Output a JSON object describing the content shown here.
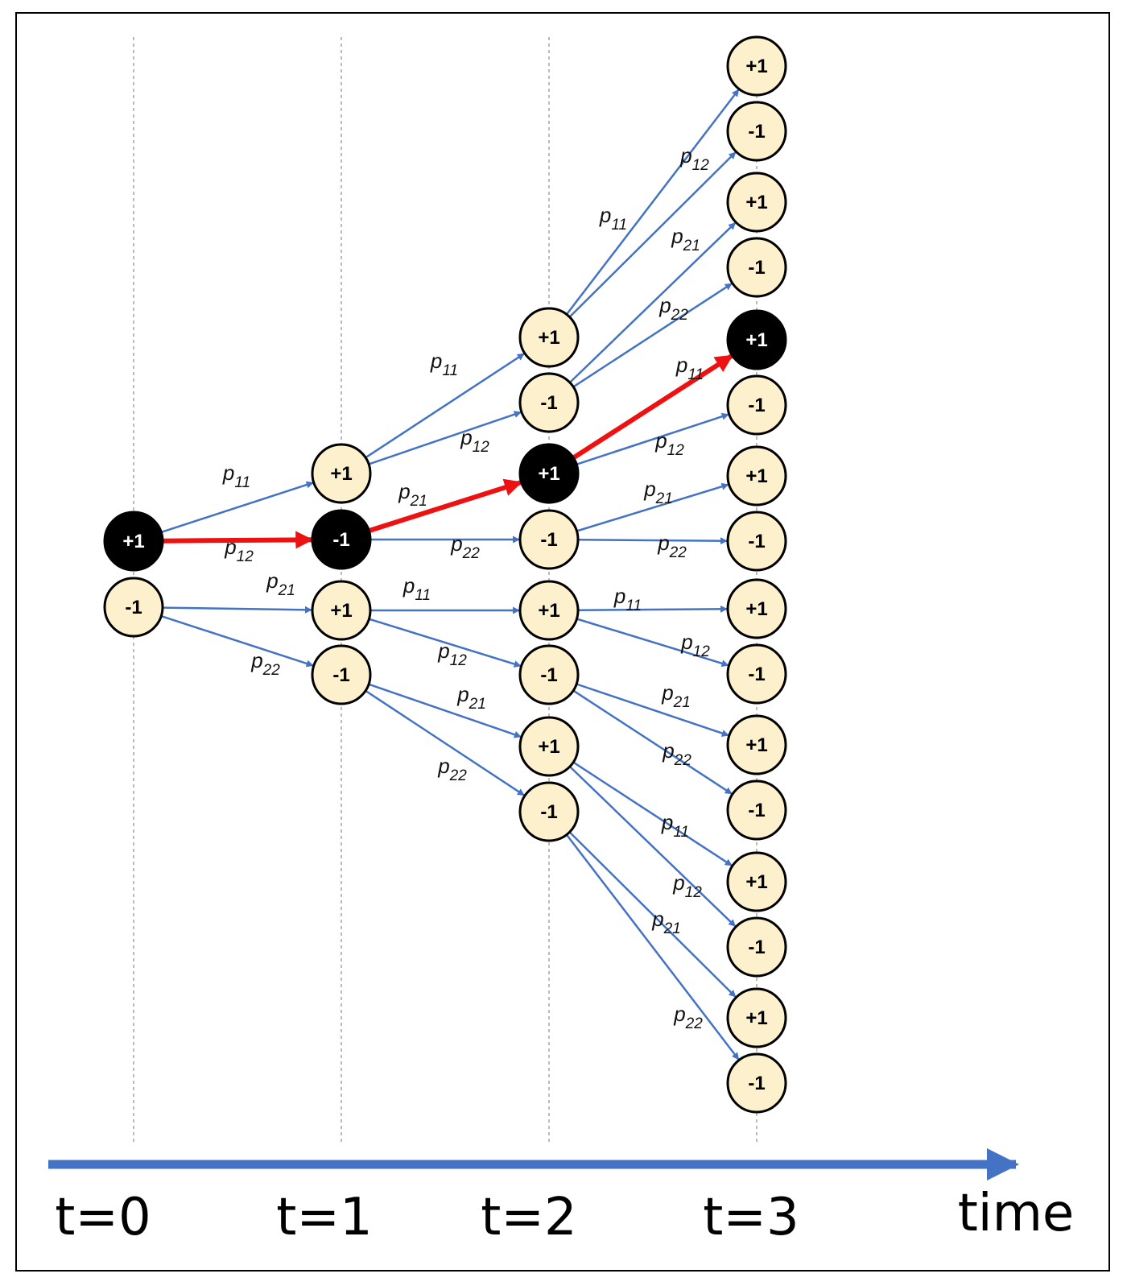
{
  "colors": {
    "frame": "#000000",
    "guide": "#777777",
    "edge": "#4472c4",
    "highlight": "#ee1111",
    "node_fill": "#fdf0cc",
    "node_dark_fill": "#000000",
    "node_stroke": "#000000",
    "node_text": "#000000",
    "node_dark_text": "#ffffff",
    "axis": "#4472c4"
  },
  "time_axis": {
    "ticks": [
      "t=0",
      "t=1",
      "t=2",
      "t=3"
    ],
    "label": "time"
  },
  "nodes": [
    {
      "id": "t0_a",
      "step": 0,
      "text": "+1",
      "highlighted": true
    },
    {
      "id": "t0_b",
      "step": 0,
      "text": "-1",
      "highlighted": false
    },
    {
      "id": "t1_a",
      "step": 1,
      "text": "+1",
      "highlighted": false
    },
    {
      "id": "t1_b",
      "step": 1,
      "text": "-1",
      "highlighted": true
    },
    {
      "id": "t1_c",
      "step": 1,
      "text": "+1",
      "highlighted": false
    },
    {
      "id": "t1_d",
      "step": 1,
      "text": "-1",
      "highlighted": false
    },
    {
      "id": "t2_a",
      "step": 2,
      "text": "+1",
      "highlighted": false
    },
    {
      "id": "t2_b",
      "step": 2,
      "text": "-1",
      "highlighted": false
    },
    {
      "id": "t2_c",
      "step": 2,
      "text": "+1",
      "highlighted": true
    },
    {
      "id": "t2_d",
      "step": 2,
      "text": "-1",
      "highlighted": false
    },
    {
      "id": "t2_e",
      "step": 2,
      "text": "+1",
      "highlighted": false
    },
    {
      "id": "t2_f",
      "step": 2,
      "text": "-1",
      "highlighted": false
    },
    {
      "id": "t2_g",
      "step": 2,
      "text": "+1",
      "highlighted": false
    },
    {
      "id": "t2_h",
      "step": 2,
      "text": "-1",
      "highlighted": false
    },
    {
      "id": "t3_a",
      "step": 3,
      "text": "+1",
      "highlighted": false
    },
    {
      "id": "t3_b",
      "step": 3,
      "text": "-1",
      "highlighted": false
    },
    {
      "id": "t3_c",
      "step": 3,
      "text": "+1",
      "highlighted": false
    },
    {
      "id": "t3_d",
      "step": 3,
      "text": "-1",
      "highlighted": false
    },
    {
      "id": "t3_e",
      "step": 3,
      "text": "+1",
      "highlighted": true
    },
    {
      "id": "t3_f",
      "step": 3,
      "text": "-1",
      "highlighted": false
    },
    {
      "id": "t3_g",
      "step": 3,
      "text": "+1",
      "highlighted": false
    },
    {
      "id": "t3_h",
      "step": 3,
      "text": "-1",
      "highlighted": false
    },
    {
      "id": "t3_i",
      "step": 3,
      "text": "+1",
      "highlighted": false
    },
    {
      "id": "t3_j",
      "step": 3,
      "text": "-1",
      "highlighted": false
    },
    {
      "id": "t3_k",
      "step": 3,
      "text": "+1",
      "highlighted": false
    },
    {
      "id": "t3_l",
      "step": 3,
      "text": "-1",
      "highlighted": false
    },
    {
      "id": "t3_m",
      "step": 3,
      "text": "+1",
      "highlighted": false
    },
    {
      "id": "t3_n",
      "step": 3,
      "text": "-1",
      "highlighted": false
    },
    {
      "id": "t3_o",
      "step": 3,
      "text": "+1",
      "highlighted": false
    },
    {
      "id": "t3_p",
      "step": 3,
      "text": "-1",
      "highlighted": false
    }
  ],
  "edges": [
    {
      "from": "t0_a",
      "to": "t1_a",
      "p": "p",
      "sub": "11",
      "highlighted": false
    },
    {
      "from": "t0_a",
      "to": "t1_b",
      "p": "p",
      "sub": "12",
      "highlighted": true
    },
    {
      "from": "t0_b",
      "to": "t1_c",
      "p": "p",
      "sub": "21",
      "highlighted": false
    },
    {
      "from": "t0_b",
      "to": "t1_d",
      "p": "p",
      "sub": "22",
      "highlighted": false
    },
    {
      "from": "t1_a",
      "to": "t2_a",
      "p": "p",
      "sub": "11",
      "highlighted": false
    },
    {
      "from": "t1_a",
      "to": "t2_b",
      "p": "p",
      "sub": "12",
      "highlighted": false
    },
    {
      "from": "t1_b",
      "to": "t2_c",
      "p": "p",
      "sub": "21",
      "highlighted": true
    },
    {
      "from": "t1_b",
      "to": "t2_d",
      "p": "p",
      "sub": "22",
      "highlighted": false
    },
    {
      "from": "t1_c",
      "to": "t2_e",
      "p": "p",
      "sub": "11",
      "highlighted": false
    },
    {
      "from": "t1_c",
      "to": "t2_f",
      "p": "p",
      "sub": "12",
      "highlighted": false
    },
    {
      "from": "t1_d",
      "to": "t2_g",
      "p": "p",
      "sub": "21",
      "highlighted": false
    },
    {
      "from": "t1_d",
      "to": "t2_h",
      "p": "p",
      "sub": "22",
      "highlighted": false
    },
    {
      "from": "t2_a",
      "to": "t3_a",
      "p": "p",
      "sub": "11",
      "highlighted": false
    },
    {
      "from": "t2_a",
      "to": "t3_b",
      "p": "p",
      "sub": "12",
      "highlighted": false
    },
    {
      "from": "t2_b",
      "to": "t3_c",
      "p": "p",
      "sub": "21",
      "highlighted": false
    },
    {
      "from": "t2_b",
      "to": "t3_d",
      "p": "p",
      "sub": "22",
      "highlighted": false
    },
    {
      "from": "t2_c",
      "to": "t3_e",
      "p": "p",
      "sub": "11",
      "highlighted": true
    },
    {
      "from": "t2_c",
      "to": "t3_f",
      "p": "p",
      "sub": "12",
      "highlighted": false
    },
    {
      "from": "t2_d",
      "to": "t3_g",
      "p": "p",
      "sub": "21",
      "highlighted": false
    },
    {
      "from": "t2_d",
      "to": "t3_h",
      "p": "p",
      "sub": "22",
      "highlighted": false
    },
    {
      "from": "t2_e",
      "to": "t3_i",
      "p": "p",
      "sub": "11",
      "highlighted": false
    },
    {
      "from": "t2_e",
      "to": "t3_j",
      "p": "p",
      "sub": "12",
      "highlighted": false
    },
    {
      "from": "t2_f",
      "to": "t3_k",
      "p": "p",
      "sub": "21",
      "highlighted": false
    },
    {
      "from": "t2_f",
      "to": "t3_l",
      "p": "p",
      "sub": "22",
      "highlighted": false
    },
    {
      "from": "t2_g",
      "to": "t3_m",
      "p": "p",
      "sub": "11",
      "highlighted": false
    },
    {
      "from": "t2_g",
      "to": "t3_n",
      "p": "p",
      "sub": "12",
      "highlighted": false
    },
    {
      "from": "t2_h",
      "to": "t3_o",
      "p": "p",
      "sub": "21",
      "highlighted": false
    },
    {
      "from": "t2_h",
      "to": "t3_p",
      "p": "p",
      "sub": "22",
      "highlighted": false
    }
  ]
}
